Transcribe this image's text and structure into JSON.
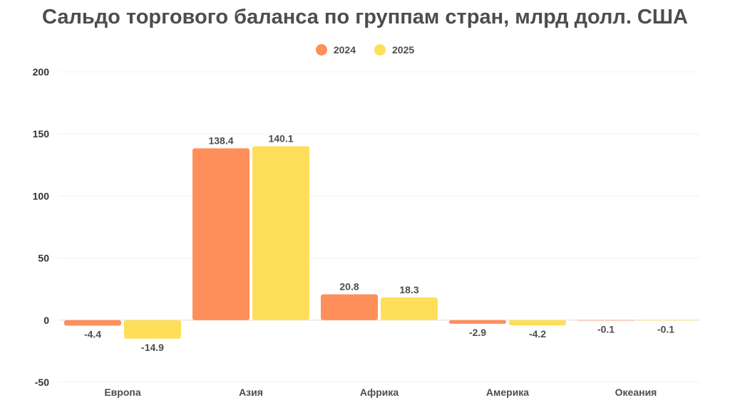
{
  "chart_data": {
    "type": "bar",
    "title": "Сальдо торгового баланса по группам стран, млрд долл. США",
    "categories": [
      "Европа",
      "Азия",
      "Африка",
      "Америка",
      "Океания"
    ],
    "series": [
      {
        "name": "2024",
        "color": "#FF8F5A",
        "values": [
          -4.4,
          138.4,
          20.8,
          -2.9,
          -0.1
        ],
        "labels": [
          "-4.4",
          "138.4",
          "20.8",
          "-2.9",
          "-0.1"
        ]
      },
      {
        "name": "2025",
        "color": "#FFDE5A",
        "values": [
          -14.9,
          140.1,
          18.3,
          -4.2,
          -0.1
        ],
        "labels": [
          "-14.9",
          "140.1",
          "18.3",
          "-4.2",
          "-0.1"
        ]
      }
    ],
    "yticks": [
      "200",
      "150",
      "100",
      "50",
      "0",
      "-50"
    ],
    "ylim": [
      -50,
      200
    ],
    "legend_position": "top-center",
    "grid": true
  }
}
